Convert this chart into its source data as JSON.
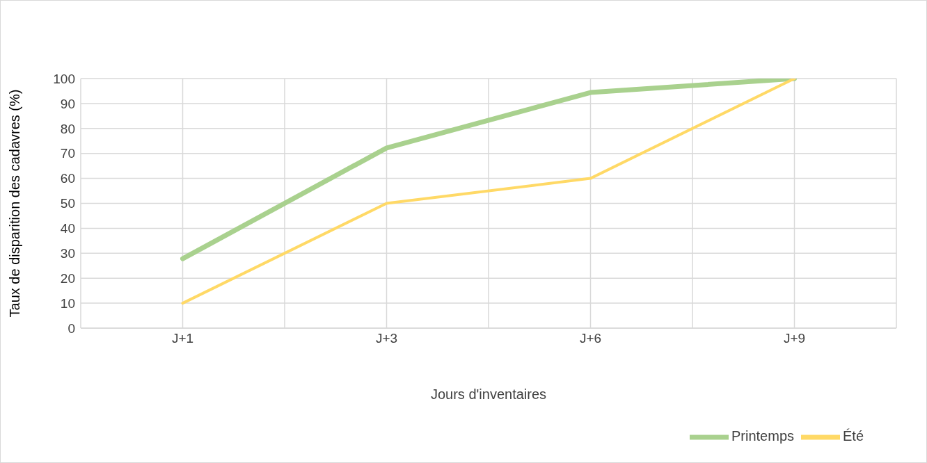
{
  "chart_data": {
    "type": "line",
    "xlabel": "Jours d'inventaires",
    "ylabel": "Taux de disparition des cadavres (%)",
    "categories": [
      "J+1",
      "J+3",
      "J+6",
      "J+9"
    ],
    "series": [
      {
        "name": "Printemps",
        "color": "#a9d18e",
        "values": [
          27.8,
          72.2,
          94.4,
          100
        ]
      },
      {
        "name": "Été",
        "color": "#ffd966",
        "values": [
          10,
          50,
          60,
          100
        ]
      }
    ],
    "ylim": [
      0,
      100
    ],
    "yticks": [
      0,
      10,
      20,
      30,
      40,
      50,
      60,
      70,
      80,
      90,
      100
    ],
    "grid": true,
    "legend": "bottom right",
    "marker": "none",
    "line_style": "solid"
  }
}
